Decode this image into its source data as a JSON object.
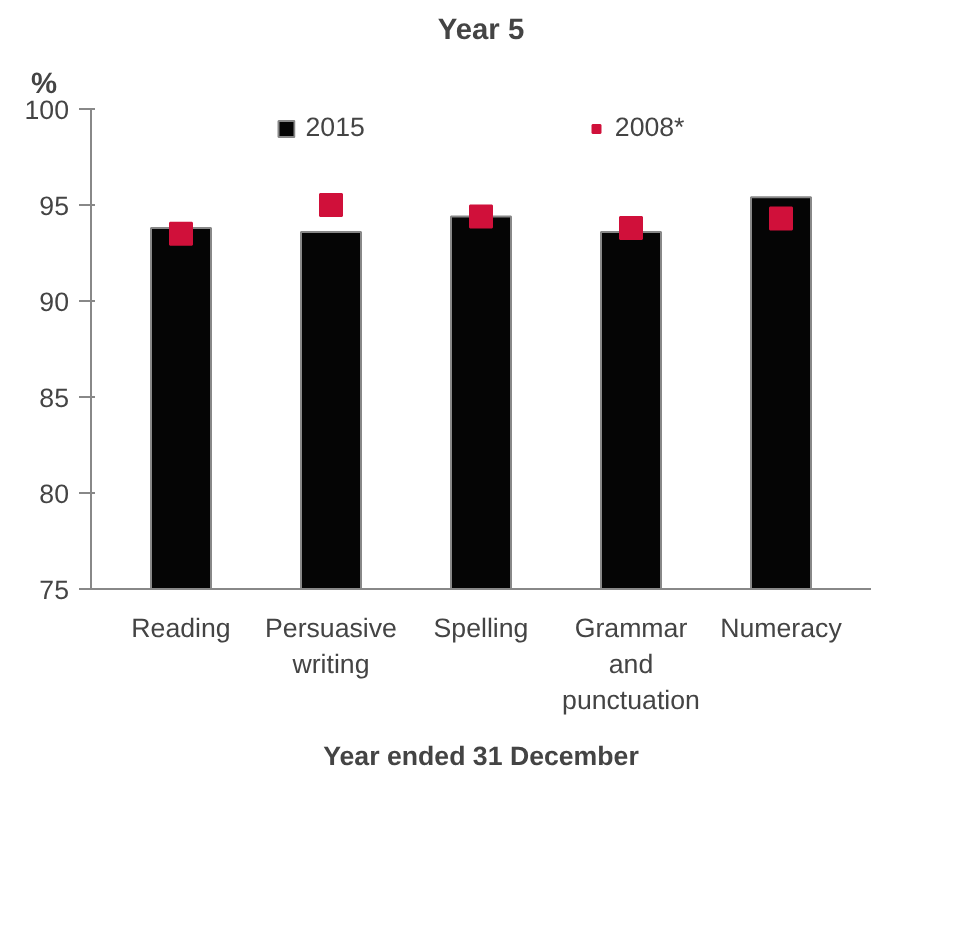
{
  "chart_data": {
    "type": "bar",
    "title": "Year 5",
    "ylabel": "%",
    "xlabel": "Year ended 31 December",
    "categories": [
      "Reading",
      "Persuasive writing",
      "Spelling",
      "Grammar and punctuation",
      "Numeracy"
    ],
    "series": [
      {
        "name": "2015",
        "color": "#050505",
        "values": [
          93.8,
          93.6,
          94.4,
          93.6,
          95.4
        ]
      },
      {
        "name": "2008*",
        "type": "scatter",
        "marker": "square",
        "color": "#d0103a",
        "values": [
          93.5,
          95.0,
          94.4,
          93.8,
          94.3
        ]
      }
    ],
    "ylim": [
      75,
      100
    ],
    "yticks": [
      75,
      80,
      85,
      90,
      95,
      100
    ],
    "grid": false,
    "legend": "top"
  }
}
